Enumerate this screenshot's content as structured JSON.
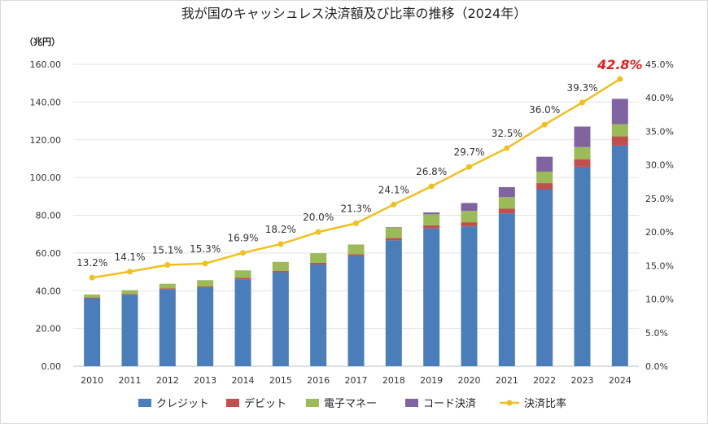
{
  "chart_data": {
    "type": "bar",
    "title": "我が国のキャッシュレス決済額及び比率の推移（2024年）",
    "ylabel": "（兆円）",
    "ylim": [
      0,
      160
    ],
    "y2lim": [
      0,
      45
    ],
    "yticks": [
      "0.00",
      "20.00",
      "40.00",
      "60.00",
      "80.00",
      "100.00",
      "120.00",
      "140.00",
      "160.00"
    ],
    "y2ticks": [
      "0.0%",
      "5.0%",
      "10.0%",
      "15.0%",
      "20.0%",
      "25.0%",
      "30.0%",
      "35.0%",
      "40.0%",
      "45.0%"
    ],
    "grid": true,
    "legend_position": "bottom",
    "categories": [
      "2010",
      "2011",
      "2012",
      "2013",
      "2014",
      "2015",
      "2016",
      "2017",
      "2018",
      "2019",
      "2020",
      "2021",
      "2022",
      "2023",
      "2024"
    ],
    "series": [
      {
        "name": "クレジット",
        "kind": "stacked-bar",
        "color": "#4a7ebb",
        "values": [
          36.0,
          37.9,
          40.8,
          41.8,
          46.1,
          49.8,
          53.9,
          58.4,
          66.7,
          73.0,
          74.1,
          81.0,
          93.8,
          105.7,
          116.9
        ]
      },
      {
        "name": "デビット",
        "kind": "stacked-bar",
        "color": "#c0504d",
        "values": [
          0.4,
          0.4,
          0.5,
          0.5,
          0.7,
          0.8,
          0.9,
          1.0,
          1.3,
          1.7,
          2.2,
          2.6,
          3.2,
          4.0,
          4.9
        ]
      },
      {
        "name": "電子マネー",
        "kind": "stacked-bar",
        "color": "#9bbb59",
        "values": [
          1.6,
          2.0,
          2.4,
          3.3,
          4.0,
          4.7,
          5.1,
          5.1,
          5.5,
          5.8,
          6.0,
          6.0,
          6.1,
          6.4,
          6.4
        ]
      },
      {
        "name": "コード決済",
        "kind": "stacked-bar",
        "color": "#8064a2",
        "values": [
          0,
          0,
          0,
          0,
          0,
          0,
          0,
          0,
          0.2,
          1.0,
          4.2,
          5.3,
          7.9,
          10.9,
          13.5
        ]
      },
      {
        "name": "決済比率",
        "kind": "line",
        "axis": "right",
        "color": "#f0c020",
        "values": [
          13.2,
          14.1,
          15.1,
          15.3,
          16.9,
          18.2,
          20.0,
          21.3,
          24.1,
          26.8,
          29.7,
          32.5,
          36.0,
          39.3,
          42.8
        ],
        "labels": [
          "13.2%",
          "14.1%",
          "15.1%",
          "15.3%",
          "16.9%",
          "18.2%",
          "20.0%",
          "21.3%",
          "24.1%",
          "26.8%",
          "29.7%",
          "32.5%",
          "36.0%",
          "39.3%",
          "42.8%"
        ],
        "highlight_color": "#e02020"
      }
    ]
  }
}
